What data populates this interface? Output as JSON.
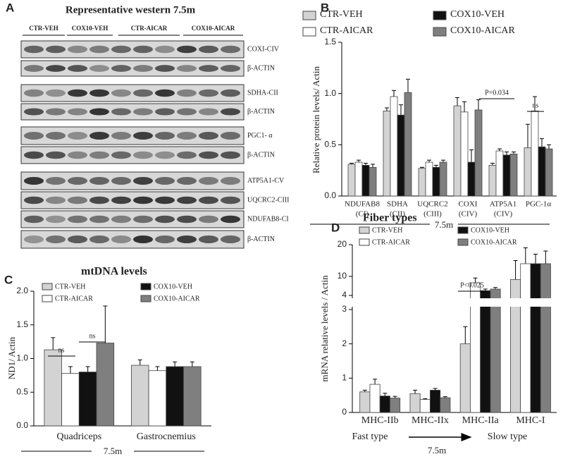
{
  "panel_a": {
    "letter": "A",
    "title": "Representative western  7.5m",
    "groups": [
      "CTR-VEH",
      "COX10-VEH",
      "CTR-AICAR",
      "COX10-AICAR"
    ],
    "blots": [
      "COXI-CIV",
      "β-ACTIN",
      "SDHA-CII",
      "β-ACTIN",
      "PGC1- α",
      "β-ACTIN",
      "ATP5A1-CV",
      "UQCRC2-CIII",
      "NDUFAB8-CI",
      "β-ACTIN"
    ]
  },
  "chart_data": [
    {
      "type": "bar",
      "letter": "B",
      "ylabel": "Relative protein levels/ Actin",
      "xlabel": "7.5m",
      "categories": [
        [
          "NDUFAB8",
          "(CI)"
        ],
        [
          "SDHA",
          "(CII)"
        ],
        [
          "UQCRC2",
          "(CIII)"
        ],
        [
          "COXI",
          "(CIV)"
        ],
        [
          "ATP5A1",
          "(CIV)"
        ],
        [
          "PGC-1α"
        ]
      ],
      "series": [
        {
          "name": "CTR-VEH",
          "color": "#d3d3d3",
          "values": [
            0.31,
            0.83,
            0.27,
            0.88,
            0.3,
            0.47
          ],
          "errors": [
            0.01,
            0.03,
            0.01,
            0.08,
            0.02,
            0.23
          ]
        },
        {
          "name": "CTR-AICAR",
          "color": "#ffffff",
          "values": [
            0.33,
            0.97,
            0.33,
            0.82,
            0.44,
            0.83
          ],
          "errors": [
            0.02,
            0.06,
            0.02,
            0.1,
            0.02,
            0.14
          ]
        },
        {
          "name": "COX10-VEH",
          "color": "#111111",
          "values": [
            0.3,
            0.79,
            0.28,
            0.33,
            0.4,
            0.48
          ],
          "errors": [
            0.02,
            0.1,
            0.02,
            0.12,
            0.03,
            0.08
          ]
        },
        {
          "name": "COX10-AICAR",
          "color": "#7f7f7f",
          "values": [
            0.28,
            1.01,
            0.33,
            0.84,
            0.41,
            0.46
          ],
          "errors": [
            0.03,
            0.13,
            0.02,
            0.1,
            0.02,
            0.04
          ]
        }
      ],
      "ylim": [
        0,
        1.5
      ],
      "yticks": [
        {
          "value": 0,
          "label": "0.0"
        },
        0.5,
        {
          "value": 1,
          "label": "1.0"
        },
        1.5
      ],
      "annotations": [
        "P=0.034",
        "ns"
      ]
    },
    {
      "type": "bar",
      "letter": "C",
      "title": "mtDNA levels",
      "ylabel": "ND1/ Actin",
      "xlabel": "7.5m",
      "categories": [
        [
          "Quadriceps"
        ],
        [
          "Gastrocnemius"
        ]
      ],
      "series": [
        {
          "name": "CTR-VEH",
          "color": "#d3d3d3",
          "values": [
            1.13,
            0.9
          ],
          "errors": [
            0.18,
            0.08
          ]
        },
        {
          "name": "CTR-AICAR",
          "color": "#ffffff",
          "values": [
            0.78,
            0.82
          ],
          "errors": [
            0.1,
            0.06
          ]
        },
        {
          "name": "COX10-VEH",
          "color": "#111111",
          "values": [
            0.8,
            0.88
          ],
          "errors": [
            0.08,
            0.07
          ]
        },
        {
          "name": "COX10-AICAR",
          "color": "#7f7f7f",
          "values": [
            1.23,
            0.88
          ],
          "errors": [
            0.55,
            0.07
          ]
        }
      ],
      "ylim": [
        0,
        2
      ],
      "yticks": [
        {
          "value": 0,
          "label": "0.0"
        },
        0.5,
        {
          "value": 1,
          "label": "1.0"
        },
        1.5,
        {
          "value": 2,
          "label": "2.0"
        }
      ],
      "annotations": [
        "ns",
        "ns"
      ]
    },
    {
      "type": "bar",
      "letter": "D",
      "title": "Fiber types",
      "ylabel": "mRNA relative levels / Actin",
      "xlabel": "7.5m",
      "categories": [
        [
          "MHC-IIb"
        ],
        [
          "MHC-IIx"
        ],
        [
          "MHC-IIa"
        ],
        [
          "MHC-I"
        ]
      ],
      "series": [
        {
          "name": "CTR-VEH",
          "color": "#d3d3d3",
          "values": [
            0.6,
            0.55,
            2.0,
            9
          ],
          "errors": [
            0.05,
            0.1,
            0.5,
            6
          ]
        },
        {
          "name": "CTR-AICAR",
          "color": "#ffffff",
          "values": [
            0.82,
            0.38,
            8,
            14
          ],
          "errors": [
            0.15,
            0.02,
            1.5,
            5
          ]
        },
        {
          "name": "COX10-VEH",
          "color": "#111111",
          "values": [
            0.48,
            0.65,
            5.5,
            14
          ],
          "errors": [
            0.08,
            0.05,
            0.5,
            3
          ]
        },
        {
          "name": "COX10-AICAR",
          "color": "#7f7f7f",
          "values": [
            0.42,
            0.43,
            6,
            14
          ],
          "errors": [
            0.05,
            0.03,
            0.5,
            4
          ]
        }
      ],
      "ylim": [
        0,
        3
      ],
      "yticks": [
        0,
        1,
        2,
        3
      ],
      "y2lim": [
        4,
        20
      ],
      "y2ticks": [
        4,
        10,
        20
      ],
      "annotations": [
        "P<0.025",
        "Fast type",
        "Slow type"
      ]
    }
  ]
}
